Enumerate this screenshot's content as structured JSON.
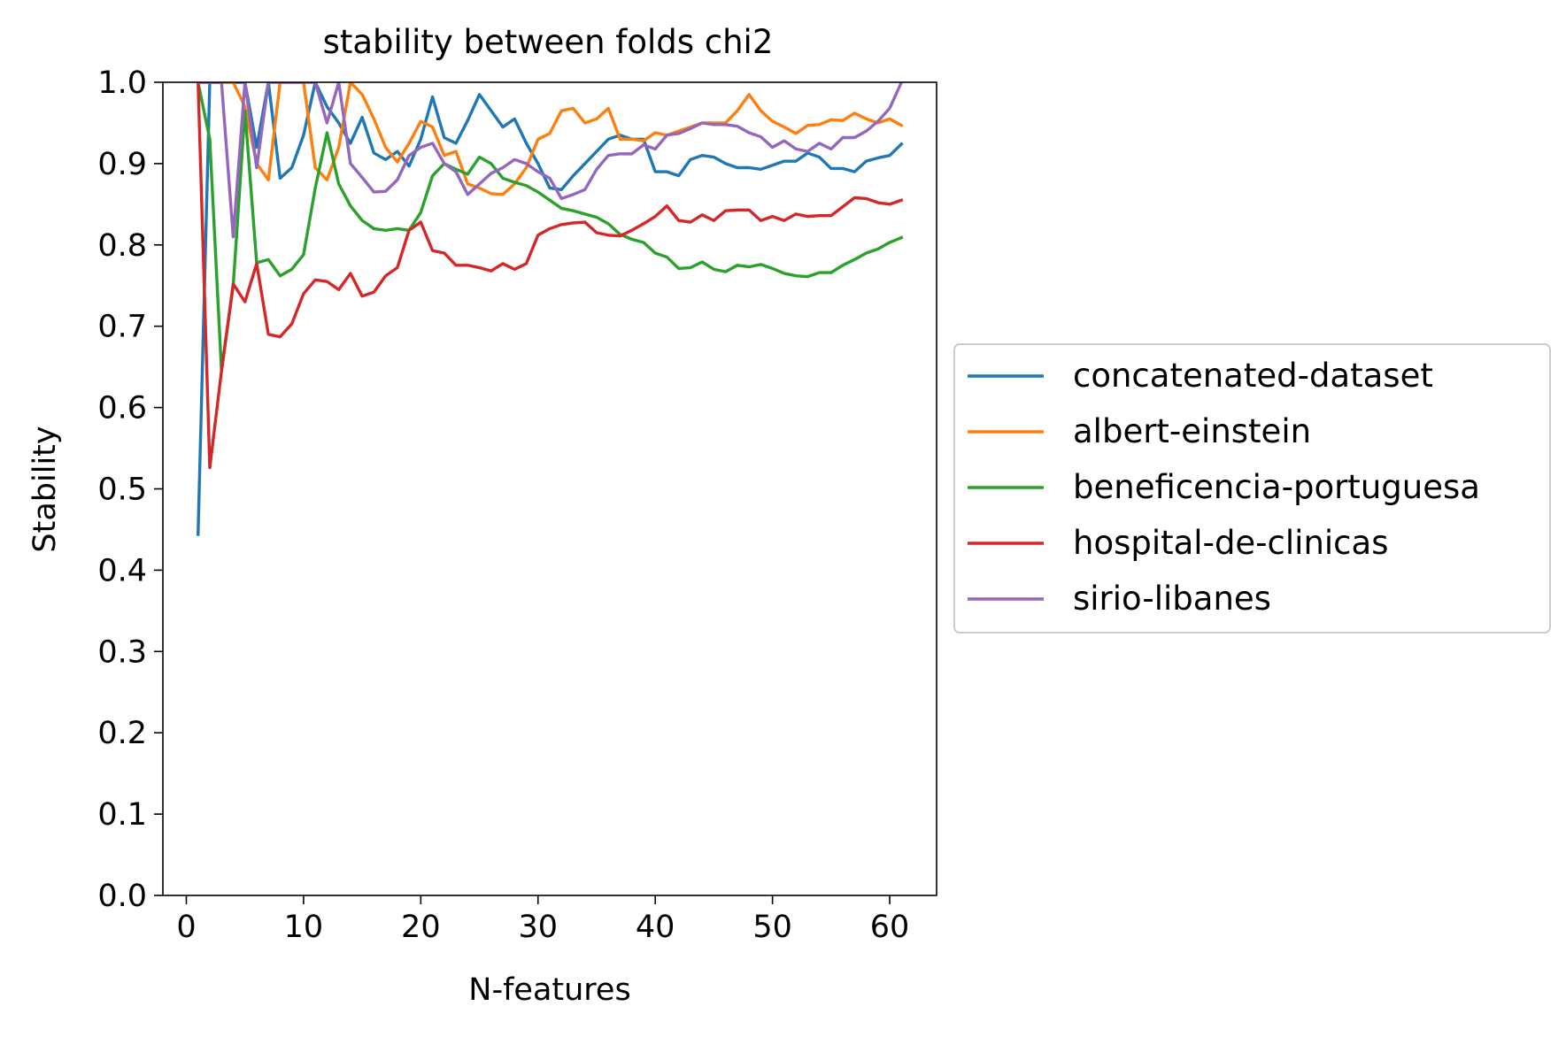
{
  "chart_data": {
    "type": "line",
    "title": "stability between folds chi2",
    "xlabel": "N-features",
    "ylabel": "Stability",
    "xlim": [
      -2,
      64
    ],
    "ylim": [
      0,
      1.0
    ],
    "xticks": [
      0,
      10,
      20,
      30,
      40,
      50,
      60
    ],
    "xtick_labels": [
      "0",
      "10",
      "20",
      "30",
      "40",
      "50",
      "60"
    ],
    "yticks": [
      0.0,
      0.1,
      0.2,
      0.3,
      0.4,
      0.5,
      0.6,
      0.7,
      0.8,
      0.9,
      1.0
    ],
    "ytick_labels": [
      "0.0",
      "0.1",
      "0.2",
      "0.3",
      "0.4",
      "0.5",
      "0.6",
      "0.7",
      "0.8",
      "0.9",
      "1.0"
    ],
    "grid": false,
    "legend_position": "outside right, vertically centered",
    "x": [
      1,
      2,
      3,
      4,
      5,
      6,
      7,
      8,
      9,
      10,
      11,
      12,
      13,
      14,
      15,
      16,
      17,
      18,
      19,
      20,
      21,
      22,
      23,
      24,
      25,
      26,
      27,
      28,
      29,
      30,
      31,
      32,
      33,
      34,
      35,
      36,
      37,
      38,
      39,
      40,
      41,
      42,
      43,
      44,
      45,
      46,
      47,
      48,
      49,
      50,
      51,
      52,
      53,
      54,
      55,
      56,
      57,
      58,
      59,
      60,
      61
    ],
    "series": [
      {
        "name": "concatenated-dataset",
        "color": "#1f77b4",
        "values": [
          0.444,
          1.0,
          1.0,
          1.0,
          1.0,
          0.92,
          1.0,
          0.882,
          0.895,
          0.935,
          1.0,
          0.97,
          0.95,
          0.925,
          0.957,
          0.913,
          0.905,
          0.915,
          0.897,
          0.93,
          0.982,
          0.932,
          0.925,
          0.953,
          0.985,
          0.965,
          0.945,
          0.955,
          0.925,
          0.9,
          0.87,
          0.868,
          0.885,
          0.9,
          0.915,
          0.93,
          0.935,
          0.93,
          0.93,
          0.89,
          0.89,
          0.885,
          0.905,
          0.91,
          0.908,
          0.9,
          0.895,
          0.895,
          0.893,
          0.898,
          0.903,
          0.903,
          0.913,
          0.908,
          0.894,
          0.894,
          0.89,
          0.903,
          0.907,
          0.91,
          0.924
        ]
      },
      {
        "name": "albert-einstein",
        "color": "#ff7f0e",
        "values": [
          1.0,
          1.0,
          1.0,
          1.0,
          0.97,
          0.9,
          0.88,
          1.0,
          1.0,
          1.0,
          0.895,
          0.88,
          0.92,
          1.0,
          0.985,
          0.955,
          0.92,
          0.902,
          0.925,
          0.952,
          0.945,
          0.91,
          0.915,
          0.875,
          0.87,
          0.863,
          0.862,
          0.875,
          0.895,
          0.93,
          0.937,
          0.965,
          0.968,
          0.95,
          0.955,
          0.968,
          0.93,
          0.93,
          0.928,
          0.938,
          0.935,
          0.94,
          0.945,
          0.95,
          0.95,
          0.95,
          0.965,
          0.985,
          0.965,
          0.952,
          0.945,
          0.937,
          0.947,
          0.948,
          0.954,
          0.953,
          0.962,
          0.955,
          0.95,
          0.955,
          0.947
        ]
      },
      {
        "name": "beneficencia-portuguesa",
        "color": "#2ca02c",
        "values": [
          1.0,
          0.93,
          0.645,
          0.75,
          0.965,
          0.778,
          0.782,
          0.762,
          0.77,
          0.788,
          0.87,
          0.938,
          0.875,
          0.848,
          0.83,
          0.82,
          0.818,
          0.82,
          0.818,
          0.84,
          0.885,
          0.9,
          0.893,
          0.887,
          0.908,
          0.9,
          0.882,
          0.877,
          0.873,
          0.865,
          0.855,
          0.845,
          0.842,
          0.838,
          0.834,
          0.826,
          0.813,
          0.807,
          0.803,
          0.79,
          0.785,
          0.771,
          0.772,
          0.779,
          0.77,
          0.767,
          0.775,
          0.773,
          0.776,
          0.771,
          0.765,
          0.762,
          0.761,
          0.766,
          0.766,
          0.775,
          0.782,
          0.79,
          0.795,
          0.803,
          0.809
        ]
      },
      {
        "name": "hospital-de-clinicas",
        "color": "#d62728",
        "values": [
          1.0,
          0.526,
          0.645,
          0.752,
          0.73,
          0.777,
          0.69,
          0.687,
          0.703,
          0.74,
          0.757,
          0.755,
          0.745,
          0.765,
          0.737,
          0.742,
          0.762,
          0.772,
          0.818,
          0.828,
          0.793,
          0.79,
          0.775,
          0.775,
          0.772,
          0.768,
          0.777,
          0.77,
          0.777,
          0.812,
          0.82,
          0.825,
          0.827,
          0.828,
          0.815,
          0.812,
          0.811,
          0.818,
          0.826,
          0.835,
          0.848,
          0.83,
          0.828,
          0.837,
          0.83,
          0.842,
          0.843,
          0.843,
          0.83,
          0.835,
          0.83,
          0.838,
          0.835,
          0.836,
          0.836,
          0.847,
          0.858,
          0.857,
          0.852,
          0.85,
          0.855
        ]
      },
      {
        "name": "sirio-libanes",
        "color": "#9467bd",
        "values": [
          1.0,
          1.0,
          1.0,
          0.81,
          1.0,
          0.895,
          1.0,
          1.0,
          1.0,
          1.0,
          1.0,
          0.95,
          1.0,
          0.9,
          0.883,
          0.865,
          0.866,
          0.88,
          0.91,
          0.92,
          0.925,
          0.9,
          0.89,
          0.862,
          0.875,
          0.888,
          0.895,
          0.905,
          0.9,
          0.89,
          0.882,
          0.857,
          0.862,
          0.868,
          0.893,
          0.91,
          0.912,
          0.912,
          0.923,
          0.918,
          0.935,
          0.937,
          0.943,
          0.95,
          0.948,
          0.948,
          0.946,
          0.938,
          0.933,
          0.92,
          0.928,
          0.918,
          0.915,
          0.925,
          0.918,
          0.932,
          0.932,
          0.94,
          0.952,
          0.968,
          1.0
        ]
      }
    ]
  }
}
